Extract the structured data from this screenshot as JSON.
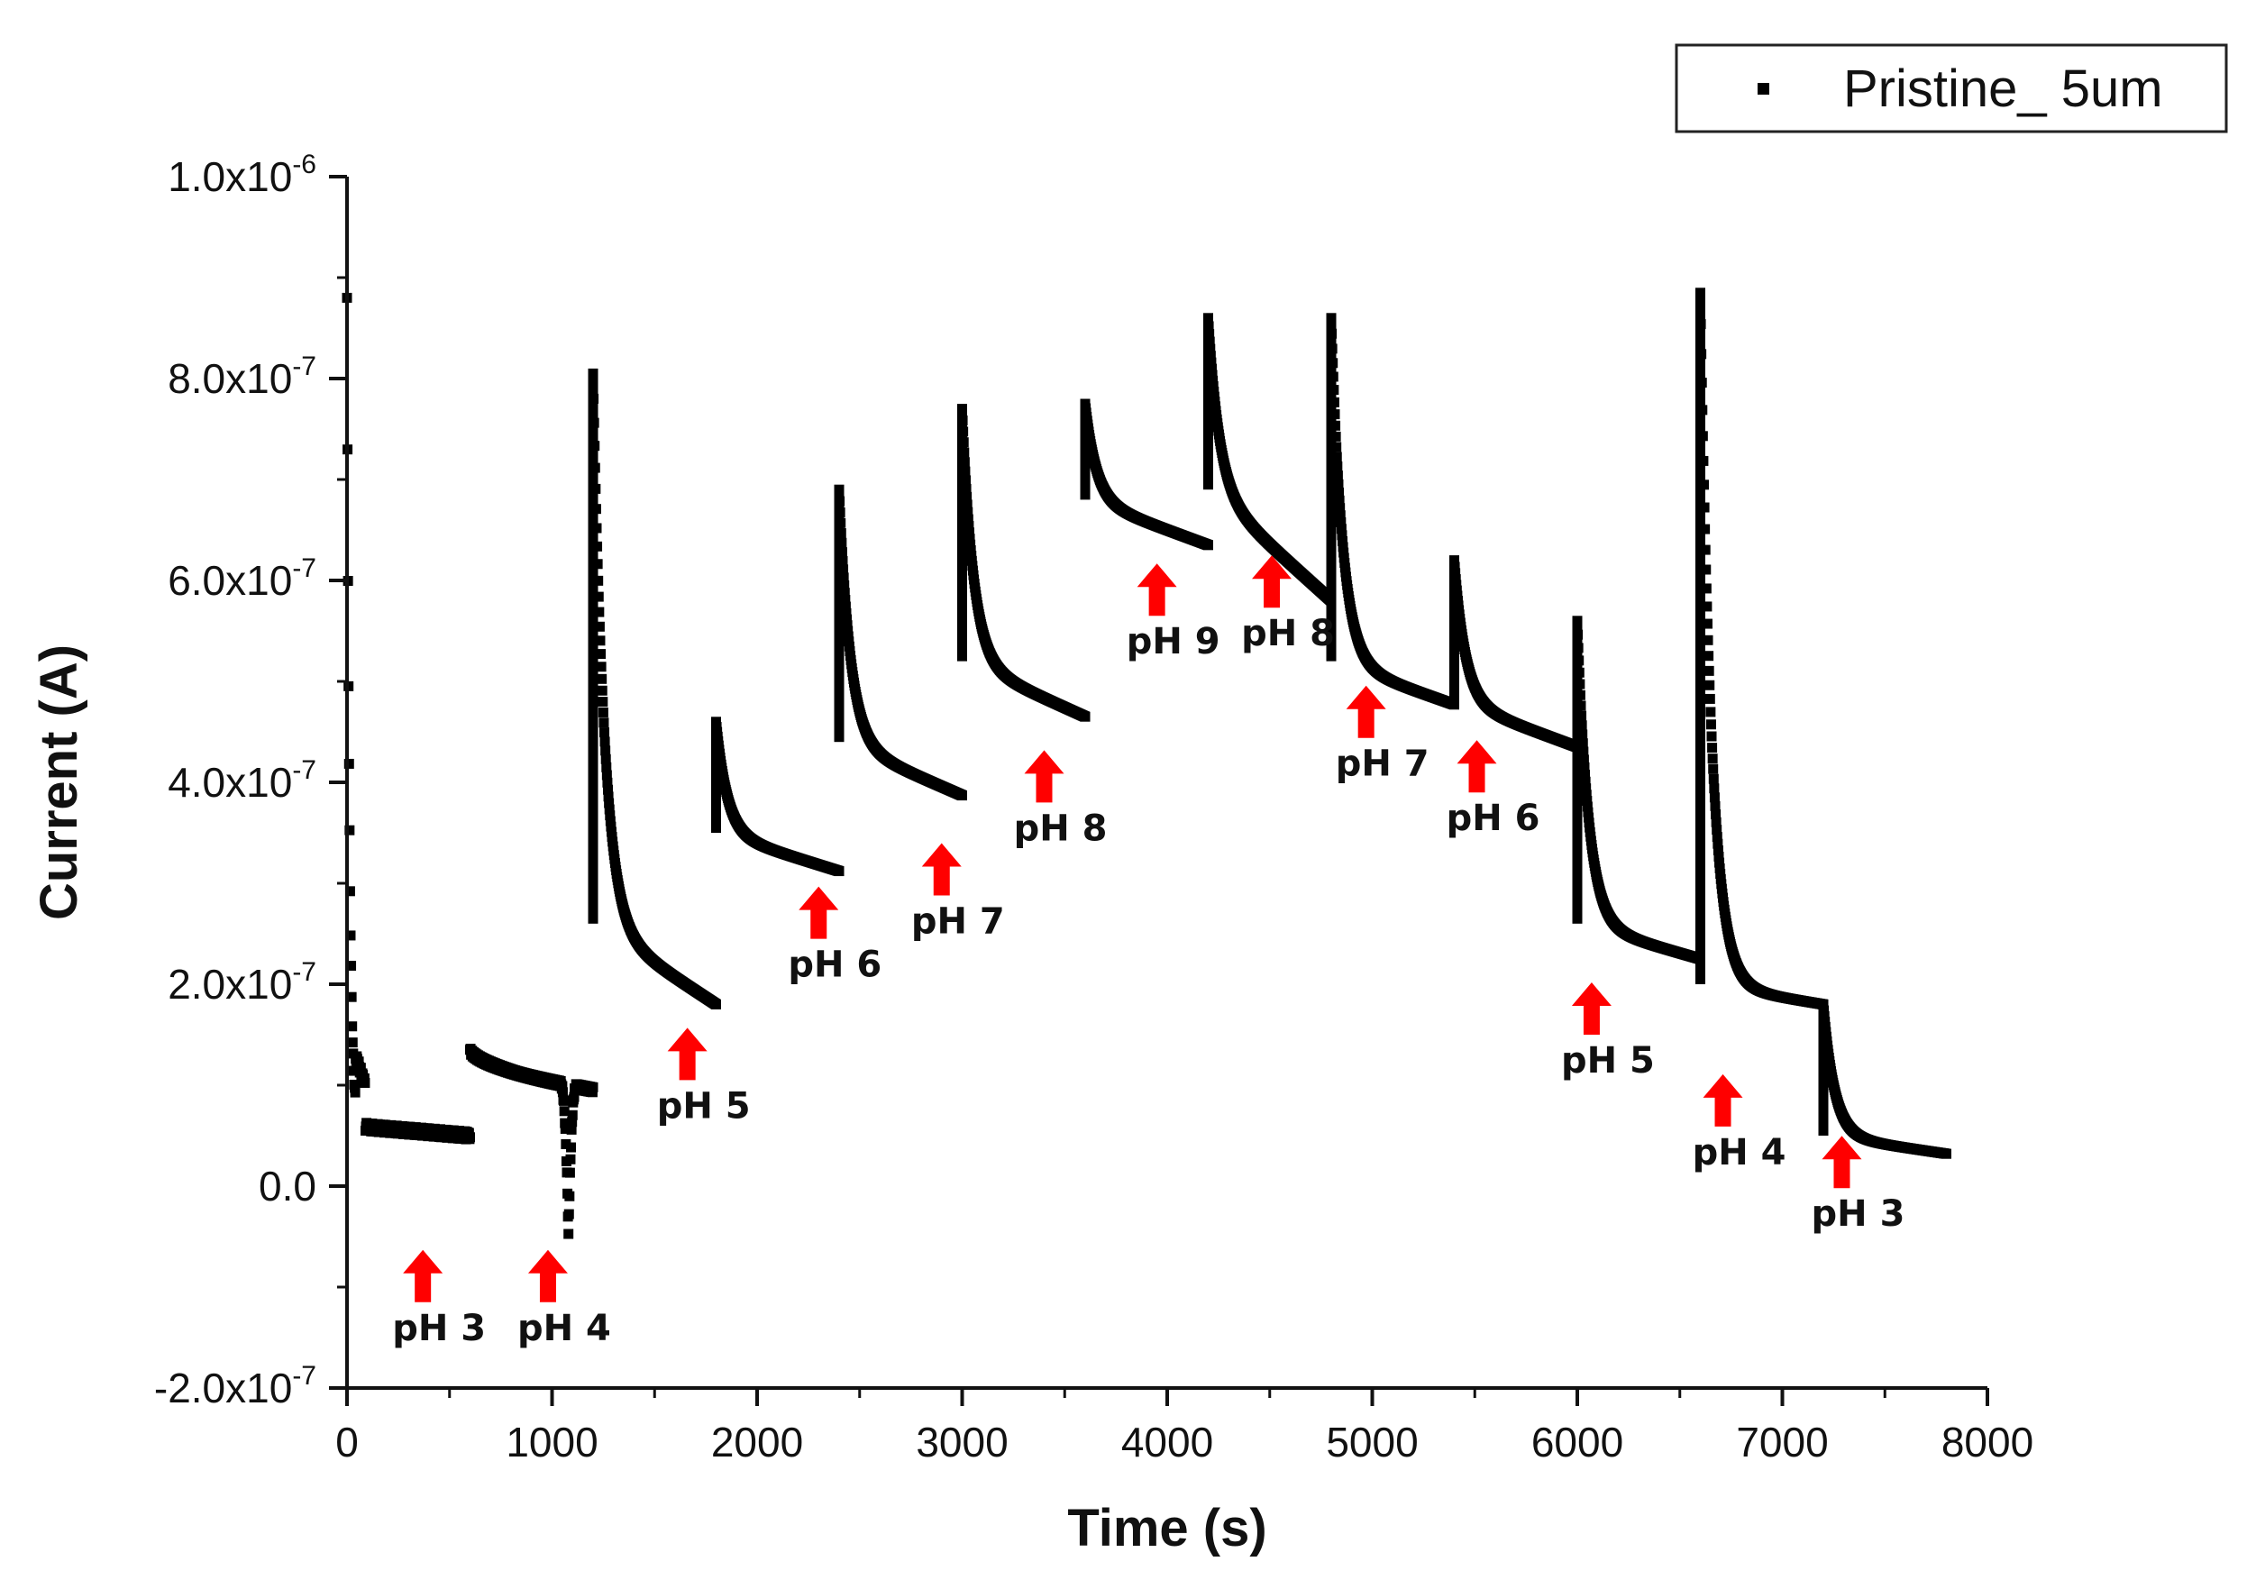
{
  "chart_data": {
    "type": "scatter",
    "title": "",
    "xlabel": "Time (s)",
    "ylabel": "Current (A)",
    "xlim": [
      0,
      8000
    ],
    "ylim": [
      -2e-07,
      1e-06
    ],
    "x_ticks": [
      0,
      1000,
      2000,
      3000,
      4000,
      5000,
      6000,
      7000,
      8000
    ],
    "x_tick_labels": [
      "0",
      "1000",
      "2000",
      "3000",
      "4000",
      "5000",
      "6000",
      "7000",
      "8000"
    ],
    "y_ticks": [
      {
        "value": -2e-07,
        "mantissa": "-2.0x10",
        "exp": "-7"
      },
      {
        "value": 0.0,
        "mantissa": "0.0",
        "exp": ""
      },
      {
        "value": 2e-07,
        "mantissa": "2.0x10",
        "exp": "-7"
      },
      {
        "value": 4e-07,
        "mantissa": "4.0x10",
        "exp": "-7"
      },
      {
        "value": 6e-07,
        "mantissa": "6.0x10",
        "exp": "-7"
      },
      {
        "value": 8e-07,
        "mantissa": "8.0x10",
        "exp": "-7"
      },
      {
        "value": 1e-06,
        "mantissa": "1.0x10",
        "exp": "-6"
      }
    ],
    "legend": {
      "position": "top-right",
      "entries": [
        "Pristine_ 5um"
      ]
    },
    "series": [
      {
        "name": "Pristine_ 5um",
        "segments": [
          {
            "label": "pH 3",
            "t_start": 0,
            "t_end": 600,
            "peak": 8.8e-07,
            "i_end": 5e-08,
            "spike_decay": 40,
            "settle": 6e-08
          },
          {
            "label": "pH 4",
            "t_start": 600,
            "t_end": 1200,
            "peak": 1.35e-07,
            "i_end": 9.5e-08,
            "dip_at": 1080,
            "dip_value": -5e-08
          },
          {
            "label": "pH 5",
            "t_start": 1200,
            "t_end": 1800,
            "peak": 8.05e-07,
            "i_end": 1.8e-07,
            "mid": 2.6e-07
          },
          {
            "label": "pH 6",
            "t_start": 1800,
            "t_end": 2400,
            "peak": 4.6e-07,
            "i_end": 3.12e-07,
            "mid": 3.5e-07
          },
          {
            "label": "pH 7",
            "t_start": 2400,
            "t_end": 3000,
            "peak": 6.9e-07,
            "i_end": 3.87e-07,
            "mid": 4.4e-07
          },
          {
            "label": "pH 8",
            "t_start": 3000,
            "t_end": 3600,
            "peak": 7.7e-07,
            "i_end": 4.65e-07,
            "mid": 5.2e-07
          },
          {
            "label": "pH 9",
            "t_start": 3600,
            "t_end": 4200,
            "peak": 7.75e-07,
            "i_end": 6.35e-07,
            "mid": 6.8e-07
          },
          {
            "label": "pH 8",
            "t_start": 4200,
            "t_end": 4800,
            "peak": 8.6e-07,
            "i_end": 5.8e-07,
            "mid": 6.9e-07
          },
          {
            "label": "pH 7",
            "t_start": 4800,
            "t_end": 5400,
            "peak": 8.6e-07,
            "i_end": 4.77e-07,
            "mid": 5.2e-07
          },
          {
            "label": "pH 6",
            "t_start": 5400,
            "t_end": 6000,
            "peak": 6.2e-07,
            "i_end": 4.35e-07,
            "mid": 4.8e-07
          },
          {
            "label": "pH 5",
            "t_start": 6000,
            "t_end": 6600,
            "peak": 5.6e-07,
            "i_end": 2.25e-07,
            "mid": 2.6e-07
          },
          {
            "label": "pH 4",
            "t_start": 6600,
            "t_end": 7200,
            "peak": 8.85e-07,
            "i_end": 1.8e-07,
            "mid": 2e-07
          },
          {
            "label": "pH 3",
            "t_start": 7200,
            "t_end": 7800,
            "peak": 1.8e-07,
            "i_end": 3.2e-08,
            "mid": 5e-08
          }
        ]
      }
    ],
    "annotations": [
      {
        "text": "pH 3",
        "x": 370,
        "y": -1.15e-07
      },
      {
        "text": "pH 4",
        "x": 980,
        "y": -1.15e-07
      },
      {
        "text": "pH 5",
        "x": 1660,
        "y": 1.05e-07
      },
      {
        "text": "pH 6",
        "x": 2300,
        "y": 2.45e-07
      },
      {
        "text": "pH 7",
        "x": 2900,
        "y": 2.88e-07
      },
      {
        "text": "pH 8",
        "x": 3400,
        "y": 3.8e-07
      },
      {
        "text": "pH 9",
        "x": 3950,
        "y": 5.65e-07
      },
      {
        "text": "pH 8",
        "x": 4510,
        "y": 5.73e-07
      },
      {
        "text": "pH 7",
        "x": 4970,
        "y": 4.44e-07
      },
      {
        "text": "pH 6",
        "x": 5510,
        "y": 3.9e-07
      },
      {
        "text": "pH 5",
        "x": 6070,
        "y": 1.5e-07
      },
      {
        "text": "pH 4",
        "x": 6710,
        "y": 5.9e-08
      },
      {
        "text": "pH 3",
        "x": 7290,
        "y": -2e-09
      }
    ]
  }
}
